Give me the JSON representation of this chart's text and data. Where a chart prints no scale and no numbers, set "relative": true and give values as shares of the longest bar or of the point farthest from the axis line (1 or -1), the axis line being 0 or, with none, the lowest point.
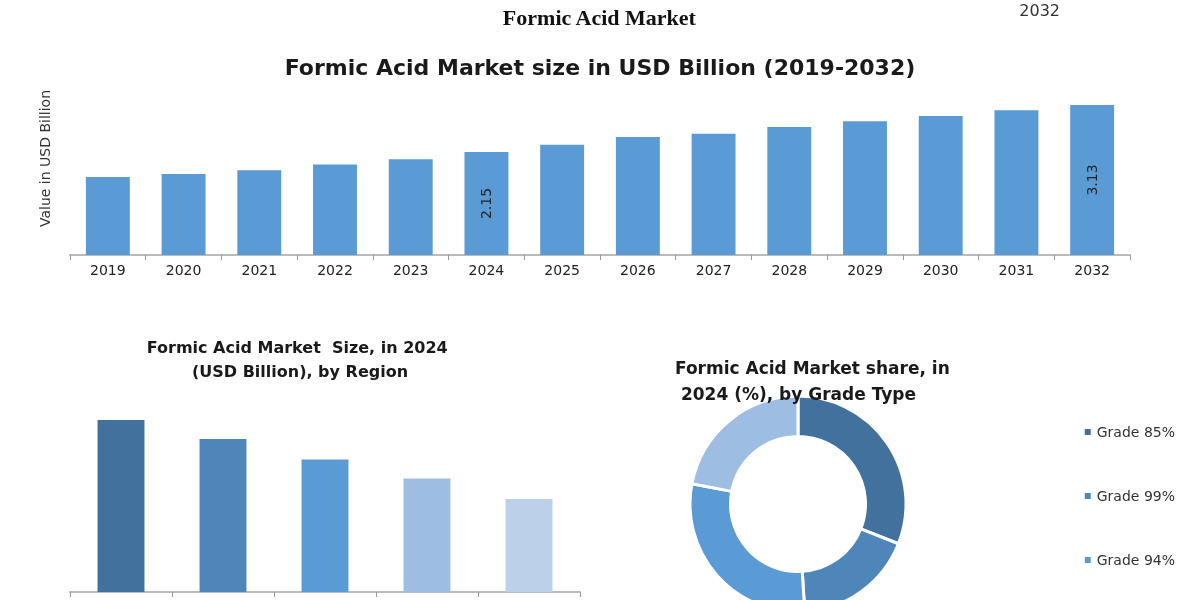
{
  "chart_data": [
    {
      "type": "bar",
      "title": "Formic Acid Market size in USD Billion (2019-2032)",
      "ylabel": "Value in USD Billion",
      "annotations": [
        "Formic Acid Market",
        "2032"
      ],
      "tick_labels": "x",
      "categories": [
        "2019",
        "2020",
        "2021",
        "2022",
        "2023",
        "2024",
        "2025",
        "2026",
        "2027",
        "2028",
        "2029",
        "2030",
        "2031",
        "2032"
      ],
      "color": "#5b9bd5",
      "values": [
        1.63,
        1.69,
        1.77,
        1.89,
        2.0,
        2.15,
        2.3,
        2.46,
        2.53,
        2.67,
        2.79,
        2.9,
        3.02,
        3.13
      ],
      "value_labels": [
        null,
        null,
        null,
        null,
        null,
        "2.15",
        null,
        null,
        null,
        null,
        null,
        null,
        null,
        "3.13"
      ]
    },
    {
      "type": "bar",
      "title": "Formic Acid Market  Size, in 2024 (USD Billion), by Region",
      "relative": true,
      "categories": [
        null,
        null,
        null,
        null,
        null
      ],
      "values": [
        1,
        0.89,
        0.77,
        0.66,
        0.54
      ],
      "colors": [
        "#41719c",
        "#4e86b9",
        "#5b9bd5",
        "#9dbde2",
        "#bdd0ea"
      ]
    },
    {
      "type": "donut",
      "title": "Formic Acid Market share, in 2024 (%), by Grade Type",
      "categories": [
        "Grade 85%",
        "Grade 99%",
        "Grade 94%",
        null
      ],
      "values": [
        31,
        18,
        29,
        22
      ],
      "colors": [
        "#41719c",
        "#4e86b9",
        "#5b9bd5",
        "#9dbde2"
      ],
      "legend": "right"
    }
  ]
}
